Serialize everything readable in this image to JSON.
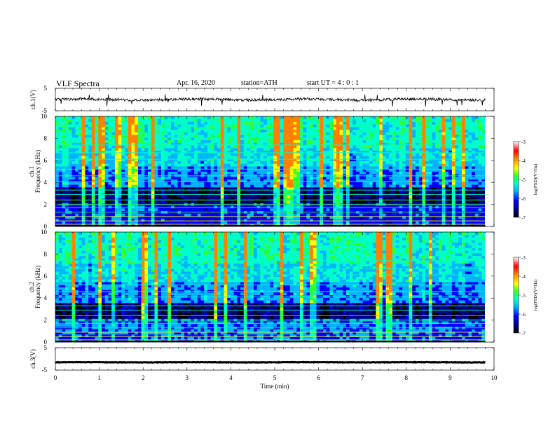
{
  "header": {
    "title": "VLF Spectra",
    "date": "Apr. 16, 2020",
    "station": "station=ATH",
    "start_ut": "start UT = 4 : 0 : 1"
  },
  "colors": {
    "background": "#ffffff",
    "axis": "#000000",
    "colormap": [
      "#000000",
      "#000080",
      "#0000ff",
      "#00b4ff",
      "#00ffc8",
      "#32ff32",
      "#ffff00",
      "#ff8000",
      "#ff0000",
      "#ffffff"
    ]
  },
  "chart_data": [
    {
      "type": "line",
      "id": "ch1",
      "ylabel": "ch.1(V)",
      "yticks": [
        "5",
        "-5"
      ],
      "ylim": [
        -5,
        5
      ],
      "xlim": [
        0,
        10
      ],
      "series": [
        {
          "x_range": [
            0,
            9.8
          ],
          "mean": 0,
          "noise_amplitude": 0.6
        }
      ]
    },
    {
      "type": "heatmap",
      "id": "ch1-spectrogram",
      "ylabel_line1": "ch.1",
      "ylabel_line2": "Frequency (kHz)",
      "yticks": [
        "0",
        "2",
        "4",
        "6",
        "8",
        "10"
      ],
      "ylim": [
        0,
        10
      ],
      "xlim": [
        0,
        9.8
      ],
      "colorbar": {
        "label": "log(PSD)(V²/Hz)",
        "ticks": [
          "-3",
          "-4",
          "-5",
          "-6",
          "-7"
        ],
        "range": [
          -7,
          -3
        ]
      }
    },
    {
      "type": "heatmap",
      "id": "ch2-spectrogram",
      "ylabel_line1": "ch.2",
      "ylabel_line2": "Frequency (kHz)",
      "yticks": [
        "0",
        "2",
        "4",
        "6",
        "8",
        "10"
      ],
      "ylim": [
        0,
        10
      ],
      "xlim": [
        0,
        9.8
      ],
      "colorbar": {
        "label": "log(PSD)(V²/Hz)",
        "ticks": [
          "-3",
          "-4",
          "-5",
          "-6",
          "-7"
        ],
        "range": [
          -7,
          -3
        ]
      }
    },
    {
      "type": "line",
      "id": "ch3",
      "ylabel": "ch.3(V)",
      "yticks": [
        "5",
        "-5"
      ],
      "ylim": [
        -5,
        5
      ],
      "xlim": [
        0,
        10
      ],
      "series": [
        {
          "x_range": [
            0,
            9.8
          ],
          "mean": -1.5,
          "noise_amplitude": 0.1
        }
      ]
    }
  ],
  "xaxis": {
    "label": "Time (min)",
    "ticks": [
      "0",
      "1",
      "2",
      "3",
      "4",
      "5",
      "6",
      "7",
      "8",
      "9",
      "10"
    ],
    "range": [
      0,
      10
    ]
  }
}
